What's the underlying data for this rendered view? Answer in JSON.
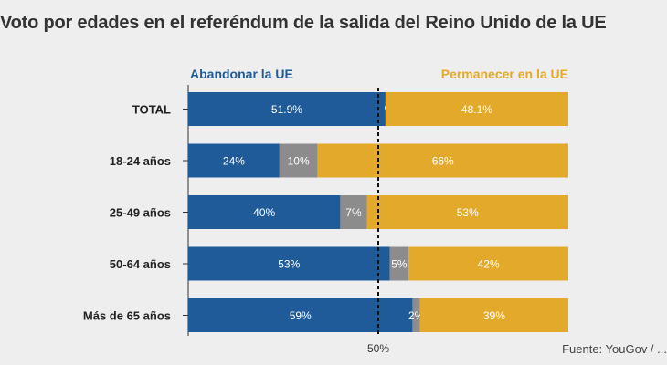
{
  "chart_data": {
    "type": "bar",
    "stacked": true,
    "orientation": "horizontal",
    "title": "Voto por edades en el referéndum de la salida del Reino Unido de la UE",
    "categories": [
      "TOTAL",
      "18-24 años",
      "25-49 años",
      "50-64 años",
      "Más de 65 años"
    ],
    "series": [
      {
        "name": "Abandonar la UE",
        "values": [
          51.9,
          24,
          40,
          53,
          59
        ],
        "labels": [
          "51.9%",
          "24%",
          "40%",
          "53%",
          "59%"
        ],
        "color": "#1f5b99"
      },
      {
        "name": "",
        "values": [
          0,
          10,
          7,
          5,
          2
        ],
        "labels": [
          "%",
          "10%",
          "7%",
          "5%",
          "2%"
        ],
        "color": "#8c8c8c"
      },
      {
        "name": "Permanecer en la UE",
        "values": [
          48.1,
          66,
          53,
          42,
          39
        ],
        "labels": [
          "48.1%",
          "66%",
          "53%",
          "42%",
          "39%"
        ],
        "color": "#e3a92a"
      }
    ],
    "xlim": [
      0,
      100
    ],
    "reference_line": {
      "value": 50,
      "label": "50%"
    },
    "legend_position": "top",
    "source": "Fuente: YouGov / ..."
  },
  "colors": {
    "leave": "#1f5b99",
    "undecided": "#8c8c8c",
    "remain": "#e3a92a",
    "background": "#eeeeee"
  }
}
